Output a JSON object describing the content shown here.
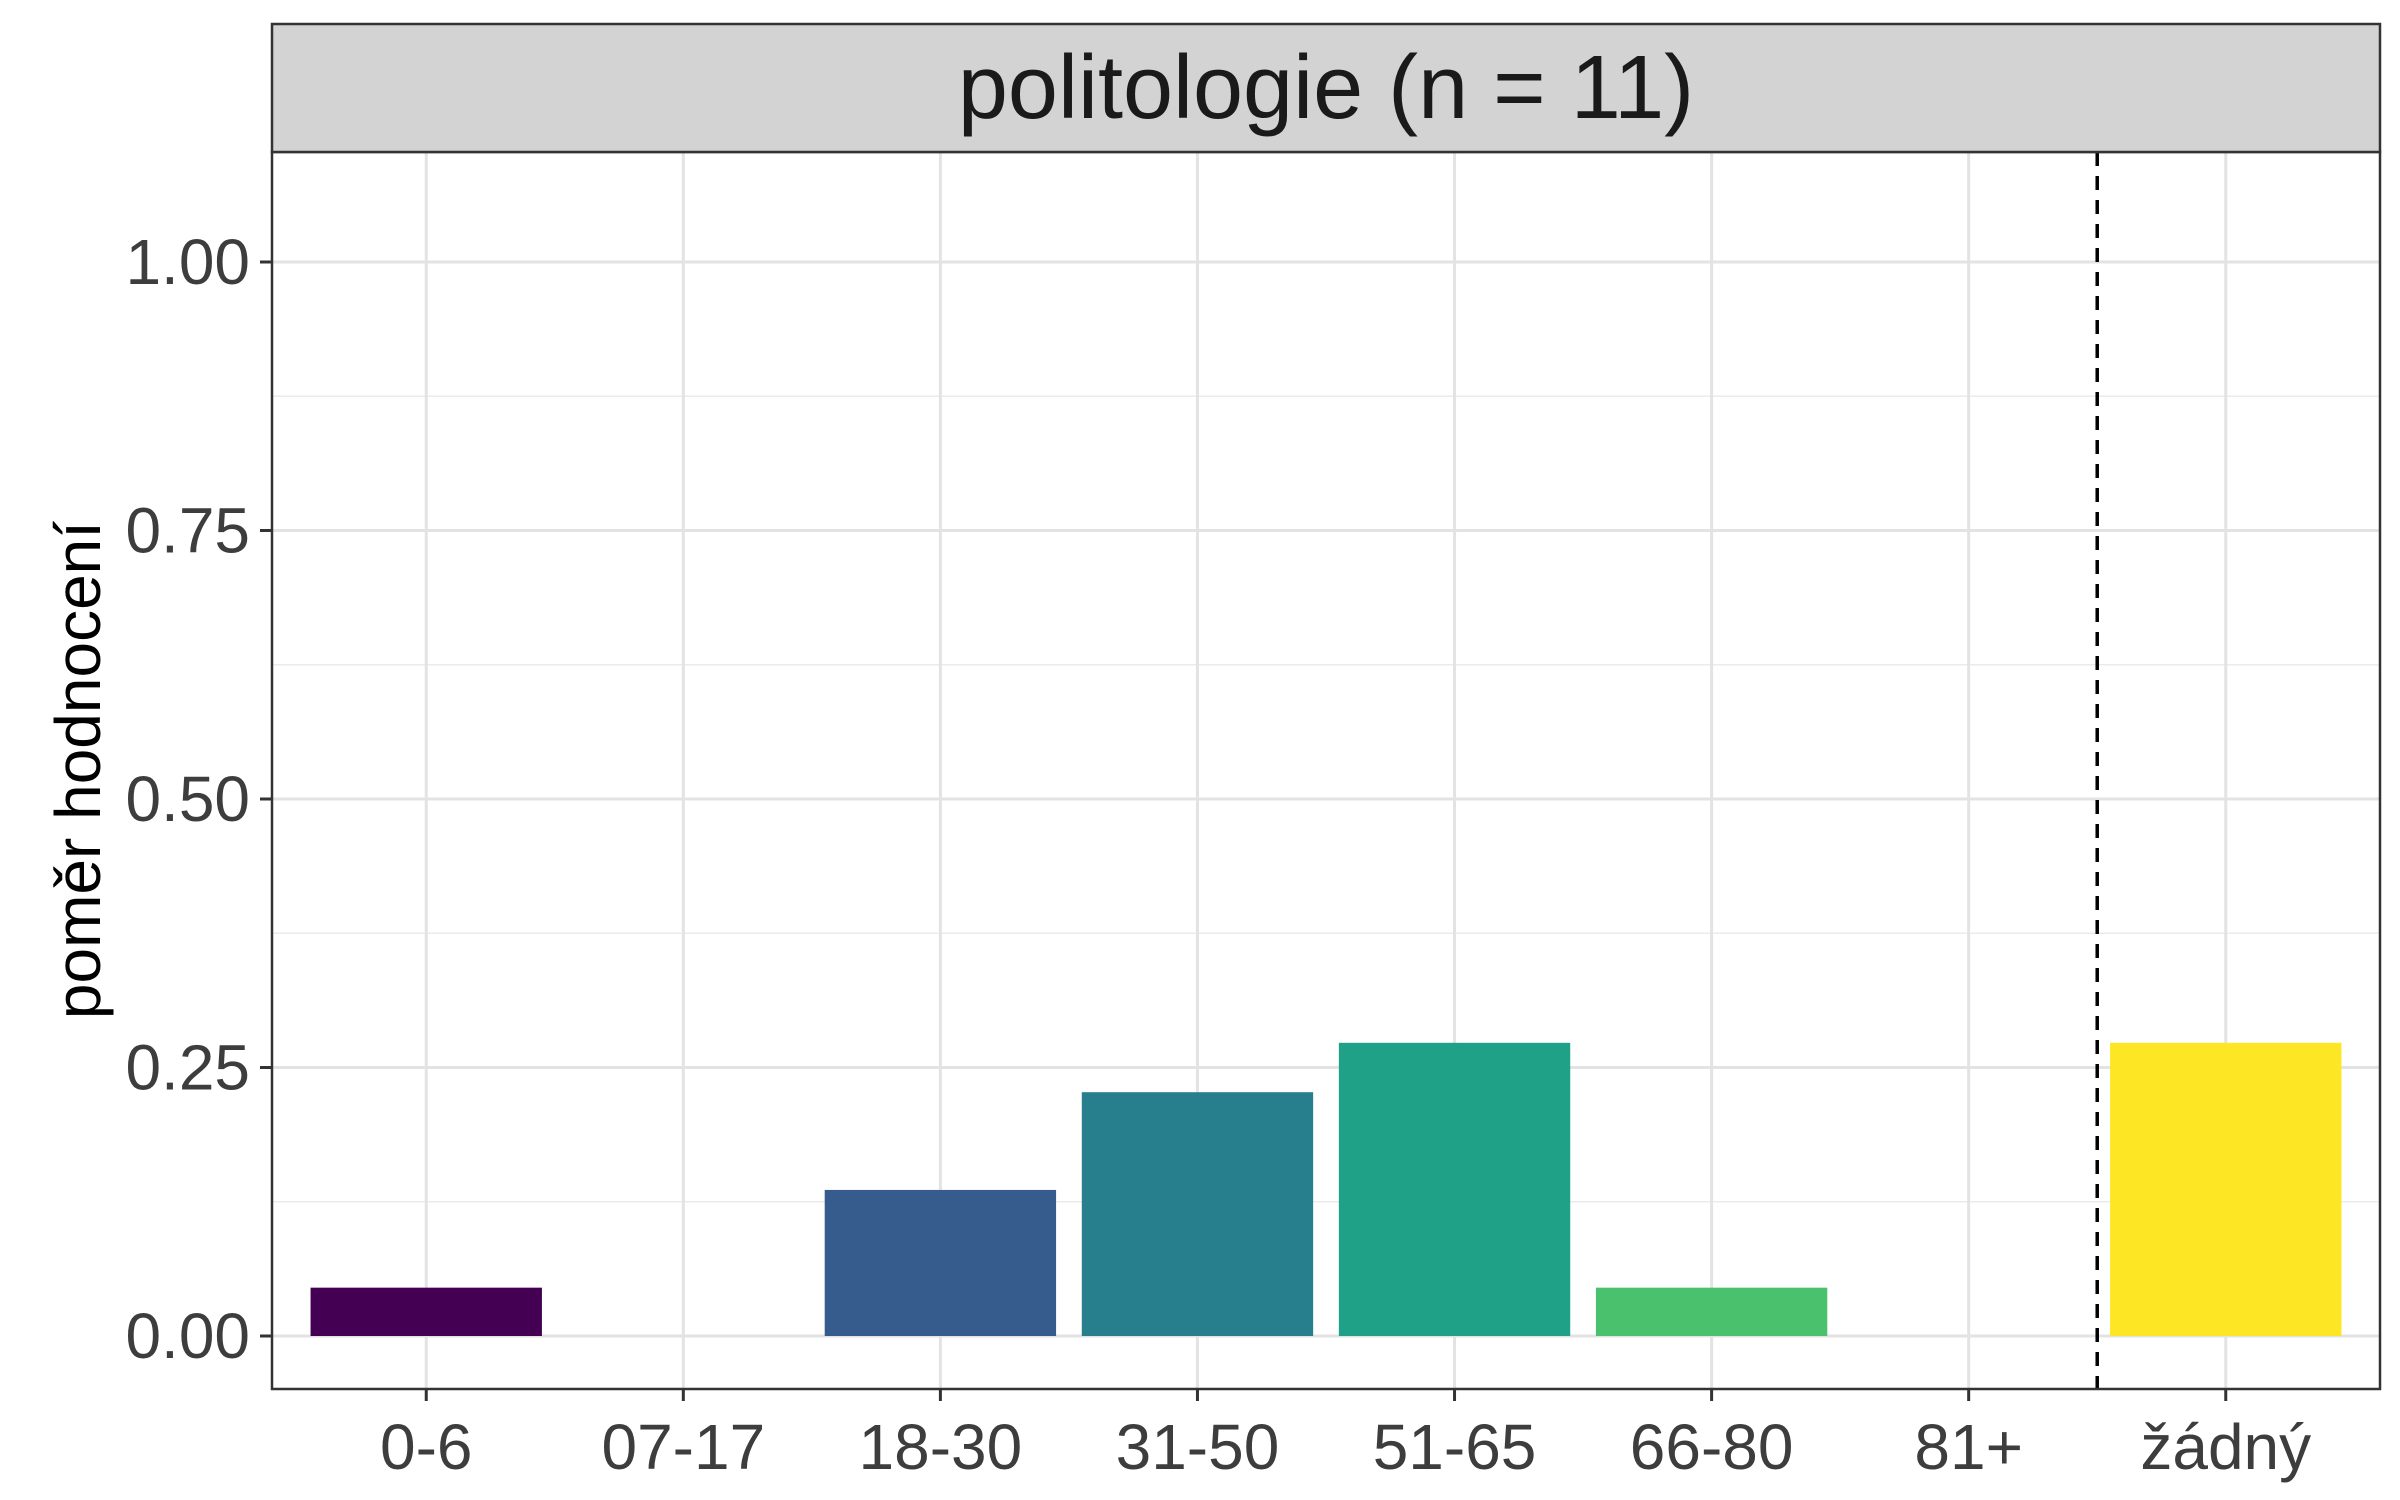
{
  "chart_data": {
    "type": "bar",
    "title": "politologie (n = 11)",
    "xlabel": "",
    "ylabel": "poměr hodnocení",
    "categories": [
      "0-6",
      "07-17",
      "18-30",
      "31-50",
      "51-65",
      "66-80",
      "81+",
      "žádný"
    ],
    "values": [
      0.045,
      0.0,
      0.136,
      0.227,
      0.273,
      0.045,
      0.0,
      0.273
    ],
    "colors": [
      "#440154",
      "#46327e",
      "#365c8d",
      "#277f8e",
      "#1fa187",
      "#4ac16d",
      "#a0da39",
      "#fde725"
    ],
    "ylim": [
      -0.05,
      1.1
    ],
    "yticks": [
      0.0,
      0.25,
      0.5,
      0.75,
      1.0
    ],
    "ytick_labels": [
      "0.00",
      "0.25",
      "0.50",
      "0.75",
      "1.00"
    ],
    "grid": true,
    "legend": "none",
    "reference_line": {
      "style": "dashed",
      "between_categories": [
        "81+",
        "žádný"
      ]
    }
  }
}
